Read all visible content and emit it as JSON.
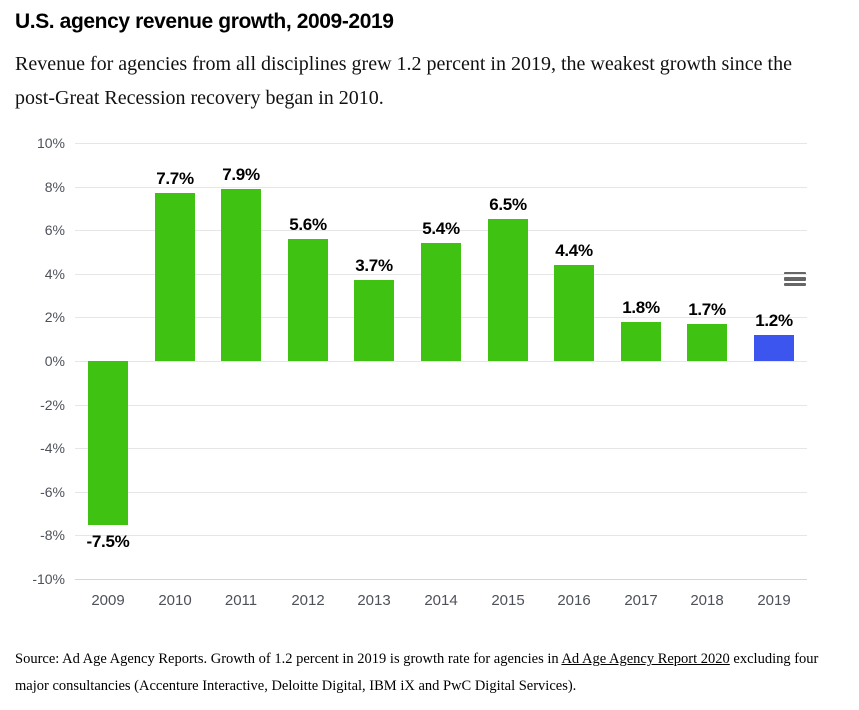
{
  "header": {
    "title": "U.S. agency revenue growth, 2009-2019",
    "subtitle": "Revenue for agencies from all disciplines grew 1.2 percent in 2019, the weakest growth since the post-Great Recession recovery began in 2010."
  },
  "menu": {
    "icon": "hamburger-icon",
    "tooltip": "Chart context menu"
  },
  "chart_data": {
    "type": "bar",
    "title": "U.S. agency revenue growth, 2009-2019",
    "categories": [
      "2009",
      "2010",
      "2011",
      "2012",
      "2013",
      "2014",
      "2015",
      "2016",
      "2017",
      "2018",
      "2019"
    ],
    "values": [
      -7.5,
      7.7,
      7.9,
      5.6,
      3.7,
      5.4,
      6.5,
      4.4,
      1.8,
      1.7,
      1.2
    ],
    "data_labels": [
      "-7.5%",
      "7.7%",
      "7.9%",
      "5.6%",
      "3.7%",
      "5.4%",
      "6.5%",
      "4.4%",
      "1.8%",
      "1.7%",
      "1.2%"
    ],
    "bar_colors": [
      "#40c212",
      "#40c212",
      "#40c212",
      "#40c212",
      "#40c212",
      "#40c212",
      "#40c212",
      "#40c212",
      "#40c212",
      "#40c212",
      "#3b55ee"
    ],
    "xlabel": "",
    "ylabel": "",
    "ylim": [
      -10,
      10
    ],
    "ytick_interval": 2,
    "ytick_labels": [
      "10%",
      "8%",
      "6%",
      "4%",
      "2%",
      "0%",
      "-2%",
      "-4%",
      "-6%",
      "-8%",
      "-10%"
    ],
    "grid": true,
    "legend": "none",
    "colors": {
      "bar_green": "#40c212",
      "bar_highlight_blue": "#3b55ee",
      "gridline": "#e6e6e6",
      "axis_line": "#ccd6eb",
      "axis_label": "#4d5159",
      "menu_icon": "#666666"
    }
  },
  "footer": {
    "source_prefix": "Source: Ad Age Agency Reports. Growth of 1.2 percent in 2019 is growth rate for agencies in ",
    "source_link": "Ad Age Agency Report 2020",
    "source_suffix": " excluding four major consultancies (Accenture Interactive, Deloitte Digital, IBM iX and PwC Digital Services)."
  }
}
